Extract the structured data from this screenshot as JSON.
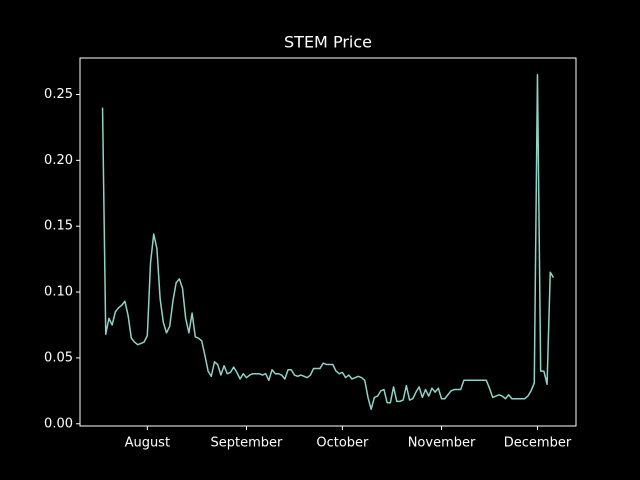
{
  "chart_data": {
    "type": "line",
    "title": "STEM Price",
    "categories": [
      null,
      null,
      null,
      null,
      null,
      null,
      null,
      null,
      null,
      null,
      null,
      null,
      null,
      null,
      "August",
      null,
      null,
      null,
      null,
      null,
      null,
      null,
      null,
      null,
      null,
      null,
      null,
      null,
      null,
      null,
      null,
      null,
      null,
      null,
      null,
      null,
      null,
      null,
      null,
      null,
      null,
      null,
      null,
      null,
      null,
      "September",
      null,
      null,
      null,
      null,
      null,
      null,
      null,
      null,
      null,
      null,
      null,
      null,
      null,
      null,
      null,
      null,
      null,
      null,
      null,
      null,
      null,
      null,
      null,
      null,
      null,
      null,
      null,
      null,
      null,
      "October",
      null,
      null,
      null,
      null,
      null,
      null,
      null,
      null,
      null,
      null,
      null,
      null,
      null,
      null,
      null,
      null,
      null,
      null,
      null,
      null,
      null,
      null,
      null,
      null,
      null,
      null,
      null,
      null,
      null,
      null,
      "November",
      null,
      null,
      null,
      null,
      null,
      null,
      null,
      null,
      null,
      null,
      null,
      null,
      null,
      null,
      null,
      null,
      null,
      null,
      null,
      null,
      null,
      null,
      null,
      null,
      null,
      null,
      null,
      null,
      null,
      "December",
      null,
      null,
      null,
      null,
      null
    ],
    "series": [
      {
        "color": "#8dd3c7",
        "values": [
          0.24,
          0.068,
          0.08,
          0.075,
          0.085,
          0.088,
          0.09,
          0.093,
          0.082,
          0.065,
          0.062,
          0.06,
          0.061,
          0.062,
          0.067,
          0.122,
          0.144,
          0.133,
          0.095,
          0.077,
          0.069,
          0.074,
          0.093,
          0.107,
          0.11,
          0.103,
          0.08,
          0.069,
          0.084,
          0.066,
          0.065,
          0.063,
          0.052,
          0.04,
          0.036,
          0.047,
          0.045,
          0.037,
          0.044,
          0.038,
          0.039,
          0.043,
          0.039,
          0.034,
          0.038,
          0.035,
          0.037,
          0.038,
          0.038,
          0.038,
          0.037,
          0.038,
          0.033,
          0.041,
          0.038,
          0.038,
          0.037,
          0.034,
          0.041,
          0.041,
          0.037,
          0.036,
          0.037,
          0.036,
          0.035,
          0.037,
          0.042,
          0.042,
          0.042,
          0.046,
          0.045,
          0.045,
          0.045,
          0.04,
          0.038,
          0.039,
          0.035,
          0.037,
          0.034,
          0.035,
          0.036,
          0.035,
          0.033,
          0.02,
          0.011,
          0.02,
          0.021,
          0.025,
          0.026,
          0.016,
          0.016,
          0.028,
          0.017,
          0.017,
          0.018,
          0.029,
          0.018,
          0.019,
          0.024,
          0.028,
          0.02,
          0.026,
          0.021,
          0.027,
          0.024,
          0.027,
          0.019,
          0.019,
          0.022,
          0.025,
          0.026,
          0.026,
          0.026,
          0.033,
          0.033,
          0.033,
          0.033,
          0.033,
          0.033,
          0.033,
          0.033,
          0.027,
          0.02,
          0.021,
          0.022,
          0.021,
          0.019,
          0.022,
          0.019,
          0.019,
          0.019,
          0.019,
          0.019,
          0.021,
          0.025,
          0.031,
          0.265,
          0.04,
          0.04,
          0.03,
          0.115,
          0.111
        ]
      }
    ],
    "ylim": [
      -0.0017,
      0.2777
    ],
    "yticks": [
      {
        "value": 0,
        "label": "0.00"
      },
      0.05,
      {
        "value": 0.1,
        "label": "0.10"
      },
      0.15,
      {
        "value": 0.2,
        "label": "0.20"
      },
      0.25
    ],
    "grid": false
  }
}
